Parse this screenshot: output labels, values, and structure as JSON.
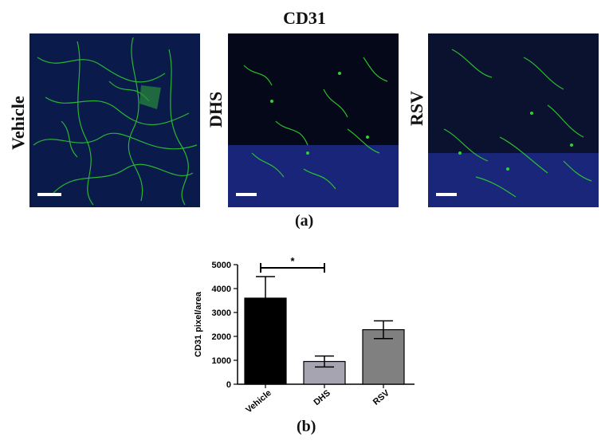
{
  "figure": {
    "top_title": "CD31",
    "panel_a_label": "(a)",
    "panel_b_label": "(b)",
    "panels": [
      {
        "label": "Vehicle"
      },
      {
        "label": "DHS"
      },
      {
        "label": "RSV"
      }
    ],
    "image_colors": {
      "background": "#06103a",
      "nuclei": "#1f2f9a",
      "vessels": "#2fd12f"
    }
  },
  "chart_data": {
    "type": "bar",
    "categories": [
      "Vehicle",
      "DHS",
      "RSV"
    ],
    "values": [
      3600,
      950,
      2280
    ],
    "errors": [
      900,
      230,
      370
    ],
    "colors": [
      "#000000",
      "#a7a4b1",
      "#808080"
    ],
    "xlabel": "",
    "ylabel": "CD31 pixel/area",
    "ylim": [
      0,
      5000
    ],
    "yticks": [
      0,
      1000,
      2000,
      3000,
      4000,
      5000
    ],
    "significance": [
      {
        "from": "Vehicle",
        "to": "DHS",
        "label": "*"
      }
    ],
    "grid": false,
    "legend": "none"
  }
}
